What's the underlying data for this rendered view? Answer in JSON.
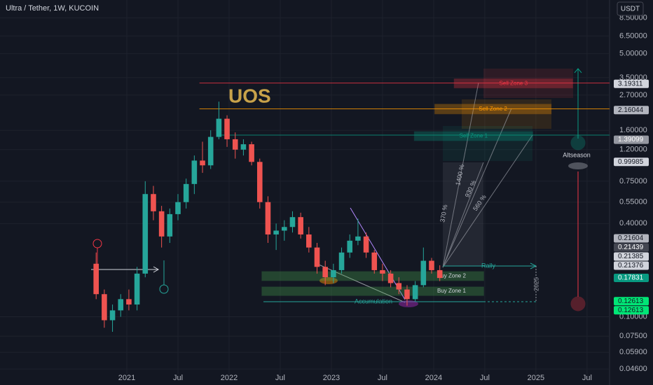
{
  "chart_data": {
    "type": "candlestick",
    "title": "Ultra / Tether, 1W, KUCOIN",
    "currency": "USDT",
    "log_scale": true,
    "grid": true,
    "up_color": "#26a69a",
    "down_color": "#ef5350",
    "xlim": [
      2019.76,
      2025.72
    ],
    "xticks": [
      2021,
      {
        "value": 2021.5,
        "label": "Jul"
      },
      2022,
      {
        "value": 2022.5,
        "label": "Jul"
      },
      2023,
      {
        "value": 2023.5,
        "label": "Jul"
      },
      2024,
      {
        "value": 2024.5,
        "label": "Jul"
      },
      2025,
      {
        "value": 2025.5,
        "label": "Jul"
      }
    ],
    "ylim": [
      0.0424,
      11.1
    ],
    "yticks": [
      {
        "value": 8.5,
        "label": "8.50000"
      },
      {
        "value": 6.5,
        "label": "6.50000"
      },
      {
        "value": 5,
        "label": "5.00000"
      },
      {
        "value": 3.5,
        "label": "3.50000"
      },
      {
        "value": 2.7,
        "label": "2.70000"
      },
      {
        "value": 1.6,
        "label": "1.60000"
      },
      {
        "value": 1.2,
        "label": "1.20000"
      },
      {
        "value": 0.75,
        "label": "0.75000"
      },
      {
        "value": 0.55,
        "label": "0.55000"
      },
      {
        "value": 0.4,
        "label": "0.40000"
      },
      {
        "value": 0.1,
        "label": "0.10000"
      },
      {
        "value": 0.075,
        "label": "0.07500"
      },
      {
        "value": 0.059,
        "label": "0.05900"
      },
      {
        "value": 0.046,
        "label": "0.04600"
      }
    ],
    "x": [
      2020.7,
      2020.78,
      2020.86,
      2020.94,
      2021.02,
      2021.1,
      2021.18,
      2021.26,
      2021.34,
      2021.42,
      2021.5,
      2021.58,
      2021.66,
      2021.74,
      2021.82,
      2021.9,
      2021.98,
      2022.06,
      2022.14,
      2022.22,
      2022.3,
      2022.38,
      2022.46,
      2022.54,
      2022.62,
      2022.7,
      2022.78,
      2022.86,
      2022.94,
      2023.02,
      2023.1,
      2023.18,
      2023.26,
      2023.34,
      2023.42,
      2023.5,
      2023.58,
      2023.66,
      2023.74,
      2023.82,
      2023.9,
      2023.98,
      2024.06
    ],
    "open": [
      0.22,
      0.14,
      0.095,
      0.11,
      0.13,
      0.12,
      0.19,
      0.62,
      0.48,
      0.33,
      0.46,
      0.55,
      0.72,
      1.02,
      0.95,
      1.45,
      1.9,
      1.4,
      1.2,
      1.3,
      1.0,
      0.55,
      0.34,
      0.36,
      0.38,
      0.44,
      0.34,
      0.28,
      0.21,
      0.18,
      0.2,
      0.26,
      0.31,
      0.33,
      0.26,
      0.2,
      0.19,
      0.165,
      0.15,
      0.13,
      0.16,
      0.23,
      0.2
    ],
    "high": [
      0.26,
      0.15,
      0.12,
      0.14,
      0.15,
      0.21,
      0.75,
      0.7,
      0.52,
      0.5,
      0.62,
      0.78,
      1.1,
      1.35,
      1.6,
      2.45,
      2.0,
      1.55,
      1.4,
      1.35,
      1.05,
      0.6,
      0.4,
      0.42,
      0.48,
      0.47,
      0.38,
      0.3,
      0.23,
      0.22,
      0.28,
      0.34,
      0.43,
      0.35,
      0.27,
      0.22,
      0.2,
      0.18,
      0.16,
      0.17,
      0.28,
      0.24,
      0.215
    ],
    "low": [
      0.13,
      0.085,
      0.08,
      0.1,
      0.11,
      0.11,
      0.18,
      0.42,
      0.28,
      0.3,
      0.42,
      0.5,
      0.62,
      0.85,
      0.9,
      1.4,
      1.25,
      1.05,
      1.1,
      0.95,
      0.5,
      0.3,
      0.27,
      0.31,
      0.35,
      0.32,
      0.26,
      0.19,
      0.16,
      0.165,
      0.19,
      0.24,
      0.29,
      0.24,
      0.19,
      0.17,
      0.155,
      0.14,
      0.118,
      0.125,
      0.155,
      0.19,
      0.17
    ],
    "close": [
      0.14,
      0.095,
      0.11,
      0.13,
      0.12,
      0.19,
      0.62,
      0.48,
      0.33,
      0.46,
      0.55,
      0.72,
      1.02,
      0.95,
      1.45,
      1.9,
      1.4,
      1.2,
      1.3,
      1.0,
      0.55,
      0.34,
      0.36,
      0.38,
      0.44,
      0.34,
      0.28,
      0.21,
      0.18,
      0.2,
      0.26,
      0.31,
      0.33,
      0.26,
      0.2,
      0.19,
      0.165,
      0.15,
      0.13,
      0.16,
      0.23,
      0.2,
      0.178
    ],
    "levels": [
      {
        "value": 3.23,
        "color": "#f23645",
        "start": 2021.71
      },
      {
        "value": 2.2,
        "color": "#ff9800",
        "start": 2021.71
      },
      {
        "value": 1.49,
        "color": "#089981",
        "start": 2021.88
      }
    ],
    "zones": [
      {
        "label": "Sell Zone 3",
        "low": 3.0,
        "high": 3.44,
        "start": 2024.2,
        "end": 2025.36,
        "color": "#f23645"
      },
      {
        "label": "Sell Zone 2",
        "low": 2.04,
        "high": 2.36,
        "start": 2024.01,
        "end": 2025.15,
        "color": "#ff9800"
      },
      {
        "label": "Sell Zone 1",
        "low": 1.37,
        "high": 1.57,
        "start": 2023.81,
        "end": 2024.97,
        "color": "#089981"
      },
      {
        "label": "Buy Zone 2",
        "low": 0.171,
        "high": 0.196,
        "start": 2022.32,
        "end": 2024.49,
        "color": "#4caf50"
      },
      {
        "label": "Buy Zone 1",
        "low": 0.137,
        "high": 0.156,
        "start": 2022.32,
        "end": 2024.49,
        "color": "#4caf50"
      }
    ],
    "price_labels": [
      {
        "value": 3.19311,
        "color": "#d1d4dc"
      },
      {
        "value": 2.16044,
        "color": "#b2b5be"
      },
      {
        "value": 1.39099,
        "color": "#9598a1"
      },
      {
        "value": 0.99985,
        "color": "#d1d4dc"
      },
      {
        "value": 0.21604,
        "color": "#b2b5be"
      },
      {
        "value": 0.21439,
        "color": "#434651"
      },
      {
        "value": 0.21385,
        "color": "#d1d4dc"
      },
      {
        "value": 0.21376,
        "color": "#d1d4dc"
      },
      {
        "value": 0.17831,
        "color": "#089981"
      },
      {
        "value": 0.12613,
        "color": "#00e676"
      },
      {
        "value": 0.12613,
        "color": "#00e676"
      }
    ],
    "annotations": {
      "overlay": "UOS",
      "rally": "Rally",
      "accumulation": "Accumulation",
      "altseason": "Altseason",
      "year_mark": "2025",
      "gains": [
        "370 %",
        "1400 %",
        "930 %",
        "560 %"
      ]
    }
  }
}
